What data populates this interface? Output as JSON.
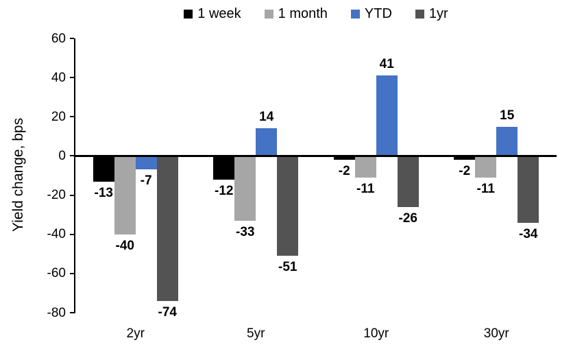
{
  "chart_data": {
    "type": "bar",
    "categories": [
      "2yr",
      "5yr",
      "10yr",
      "30yr"
    ],
    "series": [
      {
        "name": "1 week",
        "color": "#000000",
        "values": [
          -13,
          -12,
          -2,
          -2
        ]
      },
      {
        "name": "1 month",
        "color": "#A6A6A6",
        "values": [
          -40,
          -33,
          -11,
          -11
        ]
      },
      {
        "name": "YTD",
        "color": "#4472C4",
        "values": [
          -7,
          14,
          41,
          15
        ]
      },
      {
        "name": "1yr",
        "color": "#535353",
        "values": [
          -74,
          -51,
          -26,
          -34
        ]
      }
    ],
    "title": "",
    "xlabel": "",
    "ylabel": "Yield change, bps",
    "ylim": [
      -80,
      60
    ],
    "ytick_step": 20,
    "ytick_labels": [
      "60",
      "40",
      "20",
      "0",
      "-20",
      "-40",
      "-60",
      "-80"
    ],
    "grid": false,
    "legend_position": "top",
    "data_labels": true,
    "axis_color": "#000000",
    "text_color": "#000000",
    "background_color": "#FFFFFF"
  }
}
